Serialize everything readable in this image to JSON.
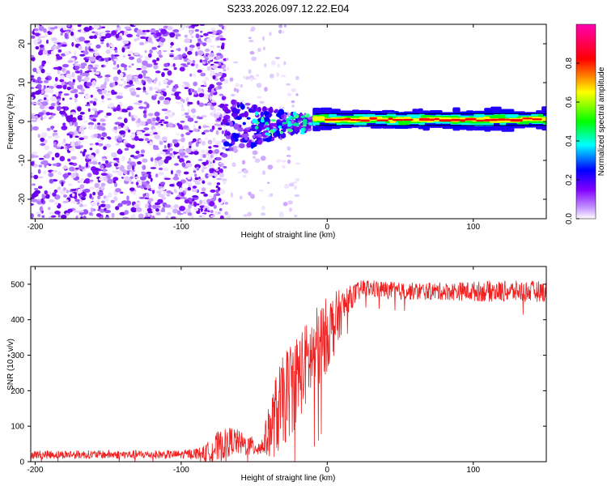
{
  "chart_data": [
    {
      "type": "heatmap",
      "title": "S233.2026.097.12.22.E04",
      "xlabel": "Height of straight line (km)",
      "ylabel": "Frequency (Hz)",
      "xlim": [
        -203,
        150
      ],
      "ylim": [
        -25,
        25
      ],
      "x_ticks": [
        -200,
        -100,
        0,
        100
      ],
      "y_ticks": [
        -20,
        -10,
        0,
        10,
        20
      ],
      "reference_lines": [
        -1,
        2
      ],
      "colorbar": {
        "label": "Normalized spectral amplitude",
        "range": [
          0,
          1
        ],
        "ticks": [
          0.0,
          0.2,
          0.4,
          0.6,
          0.8
        ],
        "colors": [
          "#ffffff",
          "#8000ff",
          "#0000ff",
          "#00ffff",
          "#00ff00",
          "#ffff00",
          "#ff0000",
          "#ff00b0"
        ]
      },
      "description_series": {
        "noise_region_km": [
          -203,
          -70
        ],
        "transition_region_km": [
          -70,
          -10
        ],
        "carrier_region_km": [
          -10,
          150
        ],
        "carrier_frequency_hz": 0.5
      }
    },
    {
      "type": "line",
      "xlabel": "Height of straight line (km)",
      "ylabel": "SNR (10 * v/v)",
      "xlim": [
        -203,
        150
      ],
      "ylim": [
        0,
        550
      ],
      "x_ticks": [
        -200,
        -100,
        0,
        100
      ],
      "y_ticks": [
        0,
        100,
        200,
        300,
        400,
        500
      ],
      "color": "#ee2020",
      "series": [
        {
          "name": "SNR",
          "x": [
            -203,
            -150,
            -100,
            -85,
            -75,
            -65,
            -55,
            -45,
            -35,
            -25,
            -15,
            -5,
            5,
            15,
            25,
            50,
            80,
            110,
            150
          ],
          "mean": [
            20,
            20,
            20,
            25,
            40,
            60,
            45,
            40,
            130,
            210,
            270,
            330,
            390,
            460,
            490,
            480,
            480,
            480,
            480
          ],
          "amp": [
            12,
            12,
            12,
            18,
            45,
            40,
            30,
            25,
            120,
            140,
            120,
            120,
            90,
            35,
            25,
            25,
            25,
            30,
            30
          ]
        }
      ]
    }
  ]
}
